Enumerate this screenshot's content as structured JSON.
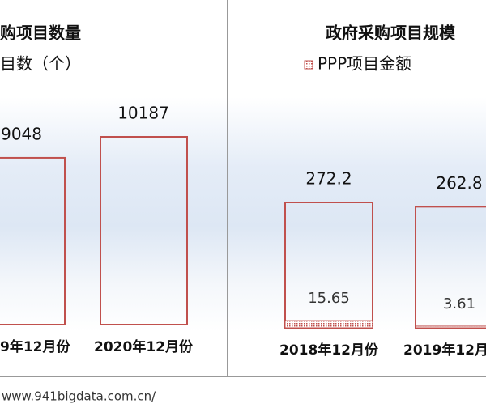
{
  "chart_data": [
    {
      "type": "bar",
      "title": "购项目数量",
      "categories": [
        "9年12月份",
        "2020年12月份"
      ],
      "series": [
        {
          "name": "目数（个）",
          "color": "#c0504d",
          "values": [
            9048,
            10187
          ]
        }
      ]
    },
    {
      "type": "bar",
      "title": "政府采购项目规模",
      "categories": [
        "2018年12月份",
        "2019年12月"
      ],
      "series": [
        {
          "color": "#c0504d",
          "values": [
            272.2,
            262.8
          ]
        },
        {
          "name": "PPP项目金额",
          "color": "#c0504d",
          "values": [
            15.65,
            3.61
          ]
        }
      ]
    }
  ],
  "footer": "www.941bigdata.com.cn/"
}
